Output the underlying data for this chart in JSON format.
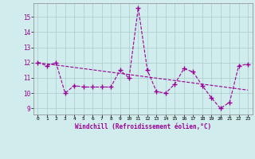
{
  "xlabel": "Windchill (Refroidissement éolien,°C)",
  "background_color": "#d0ecec",
  "line_color": "#990099",
  "grid_color": "#aacccc",
  "x_ticks": [
    0,
    1,
    2,
    3,
    4,
    5,
    6,
    7,
    8,
    9,
    10,
    11,
    12,
    13,
    14,
    15,
    16,
    17,
    18,
    19,
    20,
    21,
    22,
    23
  ],
  "y_ticks": [
    9,
    10,
    11,
    12,
    13,
    14,
    15
  ],
  "ylim": [
    8.6,
    15.9
  ],
  "xlim": [
    -0.5,
    23.5
  ],
  "series1_x": [
    0,
    1,
    2,
    3,
    4,
    5,
    6,
    7,
    8,
    9,
    10,
    11,
    12,
    13,
    14,
    15,
    16,
    17,
    18,
    19,
    20,
    21,
    22,
    23
  ],
  "series1_y": [
    12.0,
    11.8,
    12.0,
    10.0,
    10.5,
    10.4,
    10.4,
    10.4,
    10.4,
    11.5,
    11.0,
    15.6,
    11.5,
    10.1,
    10.0,
    10.6,
    11.6,
    11.4,
    10.5,
    9.7,
    9.0,
    9.4,
    11.8,
    11.9
  ],
  "trend_x": [
    0,
    23
  ],
  "trend_y": [
    12.0,
    10.2
  ]
}
